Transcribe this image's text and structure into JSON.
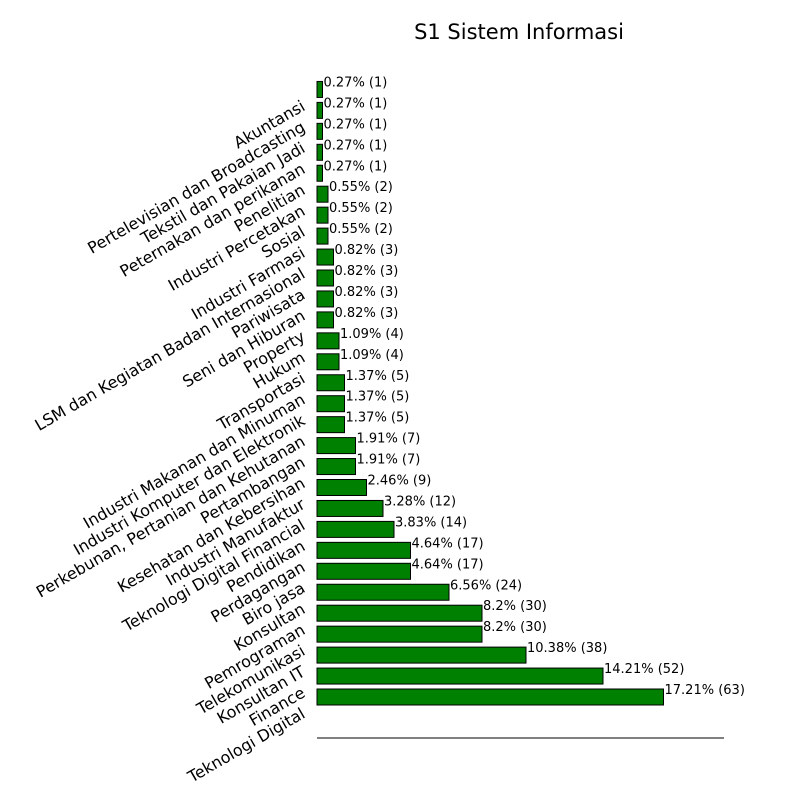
{
  "chart_data": {
    "type": "bar",
    "orientation": "horizontal",
    "title": "S1 Sistem Informasi",
    "xlabel": "",
    "ylabel": "",
    "bar_color": "#008000",
    "bar_edge_color": "#000000",
    "grid": false,
    "legend": "none",
    "xlim": [
      0,
      74
    ],
    "categories": [
      "Teknologi Digital",
      "Finance",
      "Konsultan IT",
      "Telekomunikasi",
      "Pemrograman",
      "Konsultan",
      "Biro jasa",
      "Perdagangan",
      "Pendidikan",
      "Teknologi Digital Financial",
      "Industri Manufaktur",
      "Kesehatan dan Kebersihan",
      "Pertambangan",
      "Perkebunan, Pertanian dan Kehutanan",
      "Industri Komputer dan Elektronik",
      "Industri Makanan dan Minuman",
      "Transportasi",
      "Hukum",
      "Property",
      "Seni dan Hiburan",
      "Pariwisata",
      "LSM dan Kegiatan Badan Internasional",
      "Industri Farmasi",
      "Sosial",
      "Industri Percetakan",
      "Penelitian",
      "Peternakan dan perikanan",
      "Tekstil dan Pakaian Jadi",
      "Pertelevisian dan Broadcasting",
      "Akuntansi"
    ],
    "values": [
      63,
      52,
      38,
      30,
      30,
      24,
      17,
      17,
      14,
      12,
      9,
      7,
      7,
      5,
      5,
      5,
      4,
      4,
      3,
      3,
      3,
      3,
      2,
      2,
      2,
      1,
      1,
      1,
      1,
      1
    ],
    "data_labels": [
      "17.21% (63)",
      "14.21% (52)",
      "10.38% (38)",
      "8.2% (30)",
      "8.2% (30)",
      "6.56% (24)",
      "4.64% (17)",
      "4.64% (17)",
      "3.83% (14)",
      "3.28% (12)",
      "2.46% (9)",
      "1.91% (7)",
      "1.91% (7)",
      "1.37% (5)",
      "1.37% (5)",
      "1.37% (5)",
      "1.09% (4)",
      "1.09% (4)",
      "0.82% (3)",
      "0.82% (3)",
      "0.82% (3)",
      "0.82% (3)",
      "0.55% (2)",
      "0.55% (2)",
      "0.55% (2)",
      "0.27% (1)",
      "0.27% (1)",
      "0.27% (1)",
      "0.27% (1)",
      "0.27% (1)"
    ],
    "ytick_label_rotation_deg": 30
  }
}
